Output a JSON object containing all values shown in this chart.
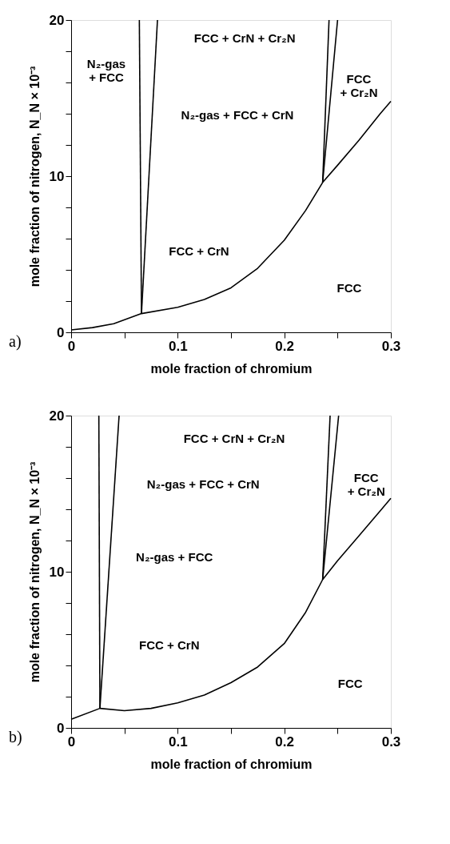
{
  "chart_data": [
    {
      "type": "line",
      "xlabel": "mole fraction of chromium",
      "ylabel": "mole fraction of nitrogen, N_N × 10⁻³",
      "xlim": [
        0,
        0.3
      ],
      "ylim": [
        0,
        20
      ],
      "xticks": [
        0,
        {
          "value": 0.05,
          "label": null
        },
        0.1,
        {
          "value": 0.15,
          "label": null
        },
        0.2,
        {
          "value": 0.25,
          "label": null
        },
        0.3
      ],
      "yticks": [
        0,
        {
          "value": 2,
          "label": null
        },
        {
          "value": 4,
          "label": null
        },
        {
          "value": 6,
          "label": null
        },
        {
          "value": 8,
          "label": null
        },
        10,
        {
          "value": 12,
          "label": null
        },
        {
          "value": 14,
          "label": null
        },
        {
          "value": 16,
          "label": null
        },
        {
          "value": 18,
          "label": null
        },
        20
      ],
      "series": [
        {
          "color": "#000000",
          "x": [
            0,
            0.02,
            0.04,
            0.066,
            0.1,
            0.125,
            0.15,
            0.175,
            0.2,
            0.22,
            0.236,
            0.25,
            0.27,
            0.29,
            0.3
          ],
          "values": [
            0.15,
            0.3,
            0.55,
            1.2,
            1.6,
            2.1,
            2.85,
            4.1,
            5.9,
            7.8,
            9.6,
            10.7,
            12.3,
            14.0,
            14.8
          ]
        },
        {
          "color": "#000000",
          "x": [
            0.066,
            0.064
          ],
          "values": [
            1.2,
            20
          ]
        },
        {
          "color": "#000000",
          "x": [
            0.066,
            0.081
          ],
          "values": [
            1.2,
            20
          ]
        },
        {
          "color": "#000000",
          "x": [
            0.236,
            0.242
          ],
          "values": [
            9.6,
            20
          ]
        },
        {
          "color": "#000000",
          "x": [
            0.236,
            0.25
          ],
          "values": [
            9.6,
            20
          ]
        }
      ],
      "annotations": [
        "N₂-gas\n+ FCC",
        "N₂-gas + FCC + CrN",
        "FCC + CrN + Cr₂N",
        "FCC\n+ Cr₂N",
        "FCC + CrN",
        "FCC",
        "a)"
      ]
    },
    {
      "type": "line",
      "xlabel": "mole fraction of chromium",
      "ylabel": "mole fraction of nitrogen, N_N × 10⁻³",
      "xlim": [
        0,
        0.3
      ],
      "ylim": [
        0,
        20
      ],
      "xticks": [
        0,
        {
          "value": 0.05,
          "label": null
        },
        0.1,
        {
          "value": 0.15,
          "label": null
        },
        0.2,
        {
          "value": 0.25,
          "label": null
        },
        0.3
      ],
      "yticks": [
        0,
        {
          "value": 2,
          "label": null
        },
        {
          "value": 4,
          "label": null
        },
        {
          "value": 6,
          "label": null
        },
        {
          "value": 8,
          "label": null
        },
        10,
        {
          "value": 12,
          "label": null
        },
        {
          "value": 14,
          "label": null
        },
        {
          "value": 16,
          "label": null
        },
        {
          "value": 18,
          "label": null
        },
        20
      ],
      "series": [
        {
          "color": "#000000",
          "x": [
            0,
            0.027,
            0.05,
            0.075,
            0.1,
            0.125,
            0.15,
            0.175,
            0.2,
            0.22,
            0.236,
            0.25,
            0.27,
            0.29,
            0.3
          ],
          "values": [
            0.55,
            1.25,
            1.1,
            1.25,
            1.6,
            2.1,
            2.9,
            3.9,
            5.4,
            7.4,
            9.5,
            10.7,
            12.3,
            13.9,
            14.7
          ]
        },
        {
          "color": "#000000",
          "x": [
            0.027,
            0.026
          ],
          "values": [
            1.25,
            20
          ]
        },
        {
          "color": "#000000",
          "x": [
            0.027,
            0.045
          ],
          "values": [
            1.25,
            20
          ]
        },
        {
          "color": "#000000",
          "x": [
            0.236,
            0.243
          ],
          "values": [
            9.5,
            20
          ]
        },
        {
          "color": "#000000",
          "x": [
            0.236,
            0.251
          ],
          "values": [
            9.5,
            20
          ]
        }
      ],
      "annotations": [
        "N₂-gas + FCC + CrN",
        "N₂-gas + FCC",
        "FCC + CrN + Cr₂N",
        "FCC\n+ Cr₂N",
        "FCC + CrN",
        "FCC",
        "b)"
      ]
    }
  ]
}
